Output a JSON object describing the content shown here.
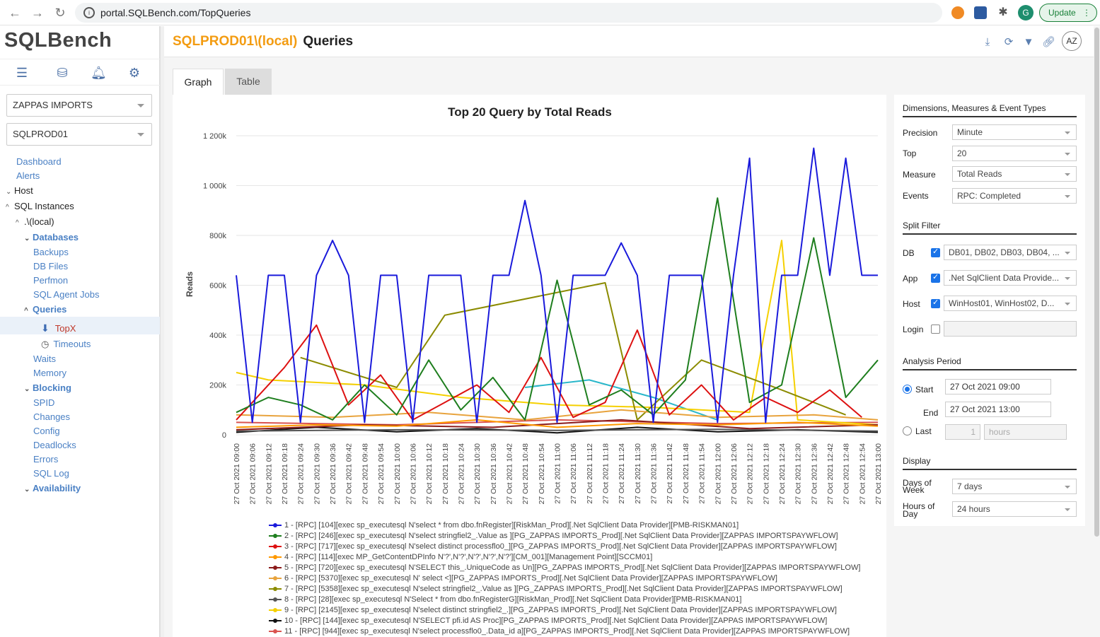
{
  "browser": {
    "url": "portal.SQLBench.com/TopQueries",
    "profile": "G",
    "update_label": "Update"
  },
  "app": {
    "logo": "SQLBench"
  },
  "sidebar": {
    "org_select": "ZAPPAS IMPORTS",
    "server_select": "SQLPROD01",
    "tree": [
      {
        "label": "Dashboard"
      },
      {
        "label": "Alerts"
      },
      {
        "label": "Host"
      },
      {
        "label": "SQL Instances"
      },
      {
        "label": ".\\(local)"
      },
      {
        "label": "Databases"
      },
      {
        "label": "Backups"
      },
      {
        "label": "DB Files"
      },
      {
        "label": "Perfmon"
      },
      {
        "label": "SQL Agent Jobs"
      },
      {
        "label": "Queries"
      },
      {
        "label": "TopX"
      },
      {
        "label": "Timeouts"
      },
      {
        "label": "Waits"
      },
      {
        "label": "Memory"
      },
      {
        "label": "Blocking"
      },
      {
        "label": "SPID"
      },
      {
        "label": "Changes"
      },
      {
        "label": "Config"
      },
      {
        "label": "Deadlocks"
      },
      {
        "label": "Errors"
      },
      {
        "label": "SQL Log"
      },
      {
        "label": "Availability"
      }
    ]
  },
  "header": {
    "instance": "SQLPROD01\\(local)",
    "page": "Queries",
    "avatar": "AZ"
  },
  "tabs": [
    {
      "label": "Graph"
    },
    {
      "label": "Table"
    }
  ],
  "right_panel": {
    "sec1": "Dimensions, Measures & Event Types",
    "precision_label": "Precision",
    "precision": "Minute",
    "top_label": "Top",
    "top": "20",
    "measure_label": "Measure",
    "measure": "Total Reads",
    "events_label": "Events",
    "events": "RPC: Completed",
    "sec2": "Split Filter",
    "db_label": "DB",
    "db": "DB01, DB02, DB03, DB04, ...",
    "app_label": "App",
    "app": ".Net SqlClient Data Provide...",
    "host_label": "Host",
    "host": "WinHost01, WinHost02, D...",
    "login_label": "Login",
    "login": "",
    "sec3": "Analysis Period",
    "start_label": "Start",
    "start": "27 Oct 2021 09:00",
    "end_label": "End",
    "end": "27 Oct 2021 13:00",
    "last_label": "Last",
    "last_value": "1",
    "last_unit": "hours",
    "sec4": "Display",
    "dow_label1": "Days of",
    "dow_label2": "Week",
    "dow": "7 days",
    "hod_label1": "Hours of",
    "hod_label2": "Day",
    "hod": "24 hours"
  },
  "colors": {
    "accent": "#f39c12",
    "link": "#4a80c4"
  },
  "chart_data": {
    "type": "line",
    "title": "Top 20 Query by Total Reads",
    "ylabel": "Reads",
    "ylim": [
      0,
      1200000
    ],
    "yticks": [
      "0",
      "200k",
      "400k",
      "600k",
      "800k",
      "1 000k",
      "1 200k"
    ],
    "x_tick_labels": [
      "27 Oct 2021 09:00",
      "27 Oct 2021 09:06",
      "27 Oct 2021 09:12",
      "27 Oct 2021 09:18",
      "27 Oct 2021 09:24",
      "27 Oct 2021 09:30",
      "27 Oct 2021 09:36",
      "27 Oct 2021 09:42",
      "27 Oct 2021 09:48",
      "27 Oct 2021 09:54",
      "27 Oct 2021 10:00",
      "27 Oct 2021 10:06",
      "27 Oct 2021 10:12",
      "27 Oct 2021 10:18",
      "27 Oct 2021 10:24",
      "27 Oct 2021 10:30",
      "27 Oct 2021 10:36",
      "27 Oct 2021 10:42",
      "27 Oct 2021 10:48",
      "27 Oct 2021 10:54",
      "27 Oct 2021 11:00",
      "27 Oct 2021 11:06",
      "27 Oct 2021 11:12",
      "27 Oct 2021 11:18",
      "27 Oct 2021 11:24",
      "27 Oct 2021 11:30",
      "27 Oct 2021 11:36",
      "27 Oct 2021 11:42",
      "27 Oct 2021 11:48",
      "27 Oct 2021 11:54",
      "27 Oct 2021 12:00",
      "27 Oct 2021 12:06",
      "27 Oct 2021 12:12",
      "27 Oct 2021 12:18",
      "27 Oct 2021 12:24",
      "27 Oct 2021 12:30",
      "27 Oct 2021 12:36",
      "27 Oct 2021 12:42",
      "27 Oct 2021 12:48",
      "27 Oct 2021 12:54",
      "27 Oct 2021 13:00"
    ],
    "series": [
      {
        "name": "1 - [RPC] [104][exec sp_executesql N'select * from dbo.fnRegister][RiskMan_Prod][.Net SqlClient Data Provider][PMB-RISKMAN01]",
        "color": "#1a1adb",
        "x": [
          0,
          1,
          2,
          3,
          4,
          5,
          6,
          7,
          8,
          9,
          10,
          11,
          12,
          13,
          14,
          15,
          16,
          17,
          18,
          19,
          20,
          21,
          22,
          23,
          24,
          25,
          26,
          27,
          28,
          29,
          30,
          31,
          32,
          33,
          34,
          35,
          36,
          37,
          38,
          39,
          40
        ],
        "values": [
          640000,
          50000,
          640000,
          640000,
          50000,
          640000,
          780000,
          640000,
          50000,
          640000,
          640000,
          50000,
          640000,
          640000,
          640000,
          50000,
          640000,
          640000,
          940000,
          640000,
          50000,
          640000,
          640000,
          640000,
          770000,
          640000,
          50000,
          640000,
          640000,
          640000,
          50000,
          640000,
          1110000,
          50000,
          640000,
          640000,
          1150000,
          640000,
          1110000,
          640000,
          640000
        ]
      },
      {
        "name": "2 - [RPC] [246][exec sp_executesql N'select stringfiel2_.Value as ][PG_ZAPPAS IMPORTS_Prod][.Net SqlClient Data Provider][ZAPPAS IMPORTSPAYWFLOW]",
        "color": "#1e7e1e",
        "x": [
          0,
          2,
          4,
          6,
          8,
          10,
          12,
          14,
          16,
          18,
          20,
          22,
          24,
          26,
          28,
          30,
          32,
          34,
          36,
          38,
          40
        ],
        "values": [
          90000,
          150000,
          120000,
          60000,
          200000,
          80000,
          300000,
          100000,
          230000,
          60000,
          620000,
          120000,
          180000,
          80000,
          220000,
          950000,
          130000,
          200000,
          790000,
          150000,
          300000
        ]
      },
      {
        "name": "3 - [RPC] [717][exec sp_executesql N'select distinct processflo0_][PG_ZAPPAS IMPORTS_Prod][.Net SqlClient Data Provider][ZAPPAS IMPORTSPAYWFLOW]",
        "color": "#dd1111",
        "x": [
          0,
          3,
          5,
          7,
          9,
          11,
          13,
          15,
          17,
          19,
          21,
          23,
          25,
          27,
          29,
          31,
          33,
          35,
          37,
          39
        ],
        "values": [
          60000,
          270000,
          440000,
          120000,
          240000,
          60000,
          130000,
          200000,
          90000,
          310000,
          70000,
          130000,
          420000,
          80000,
          200000,
          60000,
          150000,
          90000,
          180000,
          70000
        ]
      },
      {
        "name": "4 - [RPC] [114][exec MP_GetContentDPInfo N'?',N'?',N'?',N'?',N'?'][CM_001][Management Point][SCCM01]",
        "color": "#ff9900",
        "x": [
          0,
          5,
          10,
          15,
          20,
          25,
          30,
          35,
          40
        ],
        "values": [
          30000,
          40000,
          35000,
          60000,
          30000,
          45000,
          40000,
          50000,
          35000
        ]
      },
      {
        "name": "5 - [RPC] [720][exec sp_executesql N'SELECT this_.UniqueCode as Un][PG_ZAPPAS IMPORTS_Prod][.Net SqlClient Data Provider][ZAPPAS IMPORTSPAYWFLOW]",
        "color": "#8b1a1a",
        "x": [
          0,
          8,
          16,
          24,
          32,
          40
        ],
        "values": [
          20000,
          40000,
          30000,
          60000,
          25000,
          40000
        ]
      },
      {
        "name": "6 - [RPC] [5370][exec sp_executesql N' select <][PG_ZAPPAS IMPORTS_Prod][.Net SqlClient Data Provider][ZAPPAS IMPORTSPAYWFLOW]",
        "color": "#e8a33d",
        "x": [
          0,
          6,
          12,
          18,
          24,
          30,
          36,
          40
        ],
        "values": [
          80000,
          70000,
          90000,
          60000,
          100000,
          70000,
          80000,
          60000
        ]
      },
      {
        "name": "7 - [RPC] [5358][exec sp_executesql N'select stringfiel2_.Value as ][PG_ZAPPAS IMPORTS_Prod][.Net SqlClient Data Provider][ZAPPAS IMPORTSPAYWFLOW]",
        "color": "#8b8b00",
        "x": [
          4,
          10,
          13,
          23,
          25,
          29,
          34,
          38
        ],
        "values": [
          310000,
          190000,
          480000,
          610000,
          60000,
          300000,
          180000,
          80000
        ]
      },
      {
        "name": "8 - [RPC] [28][exec sp_executesql N'Select * from dbo.fnRegisterG][RiskMan_Prod][.Net SqlClient Data Provider][PMB-RISKMAN01]",
        "color": "#555555",
        "x": [
          0,
          10,
          20,
          30,
          40
        ],
        "values": [
          15000,
          20000,
          18000,
          22000,
          15000
        ]
      },
      {
        "name": "9 - [RPC] [2145][exec sp_executesql N'select distinct stringfiel2_.][PG_ZAPPAS IMPORTS_Prod][.Net SqlClient Data Provider][ZAPPAS IMPORTSPAYWFLOW]",
        "color": "#f5d000",
        "x": [
          0,
          2,
          8,
          14,
          20,
          26,
          32,
          34,
          35,
          40
        ],
        "values": [
          250000,
          220000,
          200000,
          150000,
          120000,
          110000,
          90000,
          780000,
          60000,
          40000
        ]
      },
      {
        "name": "10 - [RPC] [144][exec sp_executesql N'SELECT pfi.id AS Proc][PG_ZAPPAS IMPORTS_Prod][.Net SqlClient Data Provider][ZAPPAS IMPORTSPAYWFLOW]",
        "color": "#111111",
        "x": [
          0,
          5,
          10,
          15,
          20,
          25,
          30,
          35,
          40
        ],
        "values": [
          10000,
          30000,
          12000,
          25000,
          8000,
          30000,
          12000,
          20000,
          10000
        ]
      },
      {
        "name": "11 - [RPC] [944][exec sp_executesql N'select processflo0_.Data_id a][PG_ZAPPAS IMPORTS_Prod][.Net SqlClient Data Provider][ZAPPAS IMPORTSPAYWFLOW]",
        "color": "#d9534f",
        "x": [
          0,
          10,
          20,
          30,
          40
        ],
        "values": [
          50000,
          40000,
          60000,
          45000,
          50000
        ]
      },
      {
        "name": "",
        "color": "#2ab7ca",
        "x": [
          18,
          22,
          26,
          30
        ],
        "values": [
          190000,
          220000,
          150000,
          60000
        ]
      }
    ]
  }
}
